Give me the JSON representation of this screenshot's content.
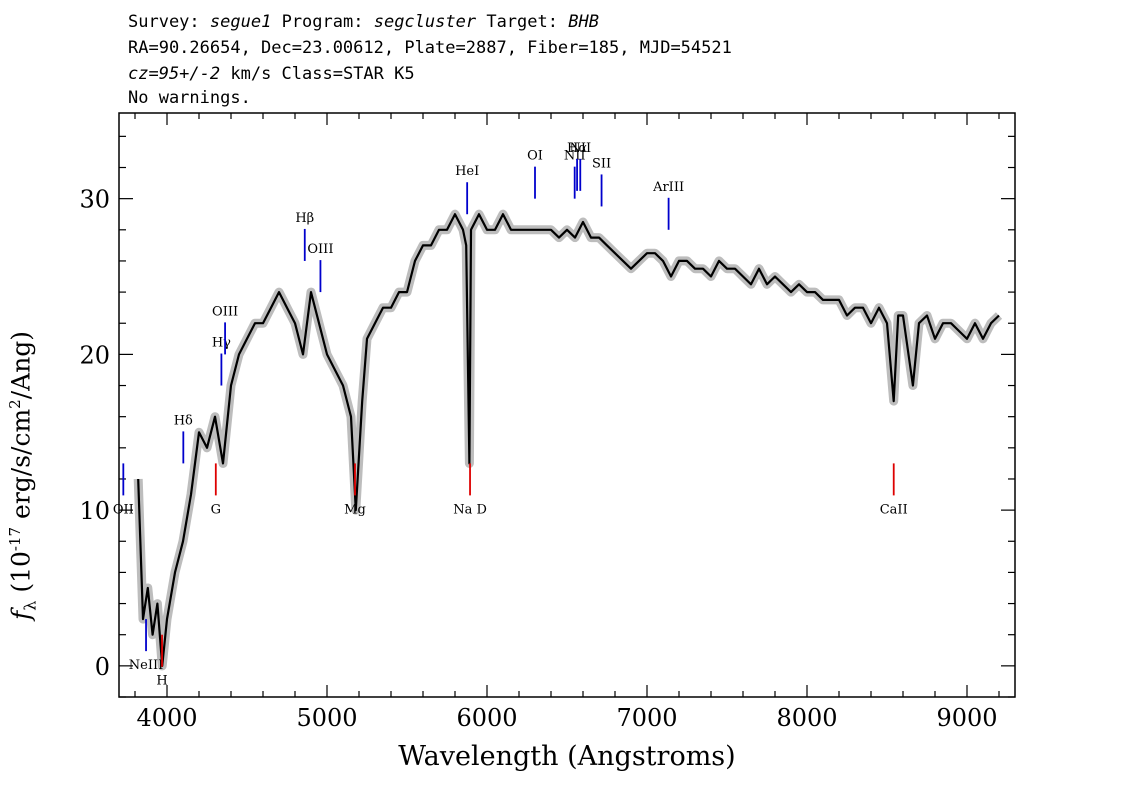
{
  "header": {
    "line1": {
      "survey_label": "Survey:",
      "survey": "segue1",
      "program_label": "Program:",
      "program": "segcluster",
      "target_label": "Target:",
      "target": "BHB"
    },
    "line2": "RA=90.26654, Dec=23.00612, Plate=2887, Fiber=185, MJD=54521",
    "line3": {
      "cz": "cz=95+/-2",
      "rest": " km/s Class=STAR K5"
    },
    "line4": "No warnings."
  },
  "chart_data": {
    "type": "line",
    "xlabel": "Wavelength (Angstroms)",
    "ylabel_parts": {
      "f": "f",
      "sub": "λ",
      "pre": " (10",
      "exp1": "-17",
      "mid": " erg/s/cm",
      "exp2": "2",
      "post": "/Ang)"
    },
    "xlim": [
      3700,
      9300
    ],
    "ylim": [
      -2,
      35.5
    ],
    "x_ticks": [
      4000,
      5000,
      6000,
      7000,
      8000,
      9000
    ],
    "y_ticks": [
      0,
      10,
      20,
      30
    ],
    "colors": {
      "flux": "#000000",
      "error_band": "#bdbdbd",
      "emission": "#0000cc",
      "absorption": "#dd0000"
    },
    "series": [
      {
        "x": [
          3820,
          3850,
          3880,
          3910,
          3940,
          3970,
          4000,
          4050,
          4100,
          4150,
          4200,
          4250,
          4300,
          4350,
          4400,
          4450,
          4500,
          4550,
          4600,
          4650,
          4700,
          4750,
          4800,
          4850,
          4900,
          4950,
          5000,
          5050,
          5100,
          5150,
          5180,
          5220,
          5250,
          5300,
          5350,
          5400,
          5450,
          5500,
          5550,
          5600,
          5650,
          5700,
          5750,
          5800,
          5850,
          5870,
          5890,
          5900,
          5950,
          6000,
          6050,
          6100,
          6150,
          6200,
          6250,
          6300,
          6350,
          6400,
          6450,
          6500,
          6550,
          6600,
          6650,
          6700,
          6750,
          6800,
          6850,
          6900,
          6950,
          7000,
          7050,
          7100,
          7150,
          7200,
          7250,
          7300,
          7350,
          7400,
          7450,
          7500,
          7550,
          7600,
          7650,
          7700,
          7750,
          7800,
          7850,
          7900,
          7950,
          8000,
          8050,
          8100,
          8150,
          8200,
          8250,
          8300,
          8350,
          8400,
          8450,
          8500,
          8542,
          8570,
          8600,
          8662,
          8700,
          8750,
          8800,
          8850,
          8900,
          8950,
          9000,
          9050,
          9100,
          9150,
          9200
        ],
        "y": [
          12,
          3,
          5,
          2,
          4,
          0,
          3,
          6,
          8,
          11,
          15,
          14,
          16,
          13,
          18,
          20,
          21,
          22,
          22,
          23,
          24,
          23,
          22,
          20,
          24,
          22,
          20,
          19,
          18,
          16,
          10,
          17,
          21,
          22,
          23,
          23,
          24,
          24,
          26,
          27,
          27,
          28,
          28,
          29,
          28,
          27,
          13,
          28,
          29,
          28,
          28,
          29,
          28,
          28,
          28,
          28,
          28,
          28,
          27.5,
          28,
          27.5,
          28.5,
          27.5,
          27.5,
          27,
          26.5,
          26,
          25.5,
          26,
          26.5,
          26.5,
          26,
          25,
          26,
          26,
          25.5,
          25.5,
          25,
          26,
          25.5,
          25.5,
          25,
          24.5,
          25.5,
          24.5,
          25,
          24.5,
          24,
          24.5,
          24,
          24,
          23.5,
          23.5,
          23.5,
          22.5,
          23,
          23,
          22,
          23,
          22,
          17,
          22.5,
          22.5,
          18,
          22,
          22.5,
          21,
          22,
          22,
          21.5,
          21,
          22,
          21,
          22,
          22.5
        ]
      }
    ],
    "line_annotations": [
      {
        "label": "OII",
        "x": 3727,
        "kind": "emission",
        "pos": "below"
      },
      {
        "label": "NeIII",
        "x": 3869,
        "kind": "emission",
        "pos": "below"
      },
      {
        "label": "Hδ",
        "x": 4102,
        "kind": "emission",
        "pos": "above"
      },
      {
        "label": "Hγ",
        "x": 4340,
        "kind": "emission",
        "pos": "above"
      },
      {
        "label": "OIII",
        "x": 4363,
        "kind": "emission",
        "pos": "above"
      },
      {
        "label": "Hβ",
        "x": 4861,
        "kind": "emission",
        "pos": "above"
      },
      {
        "label": "OIII",
        "x": 4959,
        "kind": "emission",
        "pos": "above"
      },
      {
        "label": "HeI",
        "x": 5876,
        "kind": "emission",
        "pos": "above"
      },
      {
        "label": "OI",
        "x": 6300,
        "kind": "emission",
        "pos": "above"
      },
      {
        "label": "NII",
        "x": 6548,
        "kind": "emission",
        "pos": "above"
      },
      {
        "label": "Hα",
        "x": 6563,
        "kind": "emission",
        "pos": "above"
      },
      {
        "label": "NII",
        "x": 6583,
        "kind": "emission",
        "pos": "above"
      },
      {
        "label": "SII",
        "x": 6716,
        "kind": "emission",
        "pos": "above"
      },
      {
        "label": "ArIII",
        "x": 7135,
        "kind": "emission",
        "pos": "above"
      },
      {
        "label": "H",
        "x": 3969,
        "kind": "absorption",
        "pos": "below"
      },
      {
        "label": "G",
        "x": 4305,
        "kind": "absorption",
        "pos": "below"
      },
      {
        "label": "Mg",
        "x": 5175,
        "kind": "absorption",
        "pos": "below"
      },
      {
        "label": "Na D",
        "x": 5894,
        "kind": "absorption",
        "pos": "below"
      },
      {
        "label": "CaII",
        "x": 8542,
        "kind": "absorption",
        "pos": "below"
      }
    ]
  }
}
